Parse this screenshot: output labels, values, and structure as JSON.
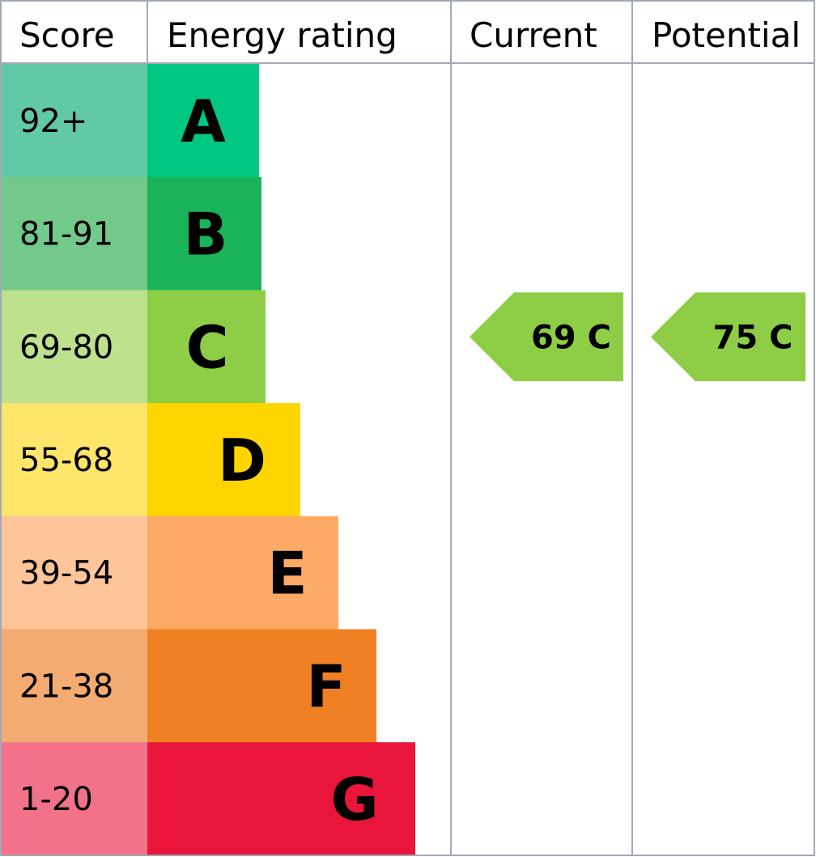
{
  "headers": {
    "score": "Score",
    "energy_rating": "Energy rating",
    "current": "Current",
    "potential": "Potential"
  },
  "chart_data": {
    "type": "bar",
    "title": "",
    "bands": [
      {
        "letter": "A",
        "score": "92+",
        "score_min": 92,
        "score_max": 100,
        "color": "#00C781",
        "score_bg": "#61C9A8"
      },
      {
        "letter": "B",
        "score": "81-91",
        "score_min": 81,
        "score_max": 91,
        "color": "#19B459",
        "score_bg": "#72C98A"
      },
      {
        "letter": "C",
        "score": "69-80",
        "score_min": 69,
        "score_max": 80,
        "color": "#8DCE46",
        "score_bg": "#BDE18D"
      },
      {
        "letter": "D",
        "score": "55-68",
        "score_min": 55,
        "score_max": 68,
        "color": "#FFD500",
        "score_bg": "#FFE56A"
      },
      {
        "letter": "E",
        "score": "39-54",
        "score_min": 39,
        "score_max": 54,
        "color": "#FCAA65",
        "score_bg": "#FEC59A"
      },
      {
        "letter": "F",
        "score": "21-38",
        "score_min": 21,
        "score_max": 38,
        "color": "#EF8023",
        "score_bg": "#F3AB71"
      },
      {
        "letter": "G",
        "score": "1-20",
        "score_min": 1,
        "score_max": 20,
        "color": "#E9153B",
        "score_bg": "#F2728A"
      }
    ],
    "current": {
      "value": 69,
      "band": "C",
      "label": "69 C",
      "color": "#8DCE46"
    },
    "potential": {
      "value": 75,
      "band": "C",
      "label": "75 C",
      "color": "#8DCE46"
    }
  }
}
